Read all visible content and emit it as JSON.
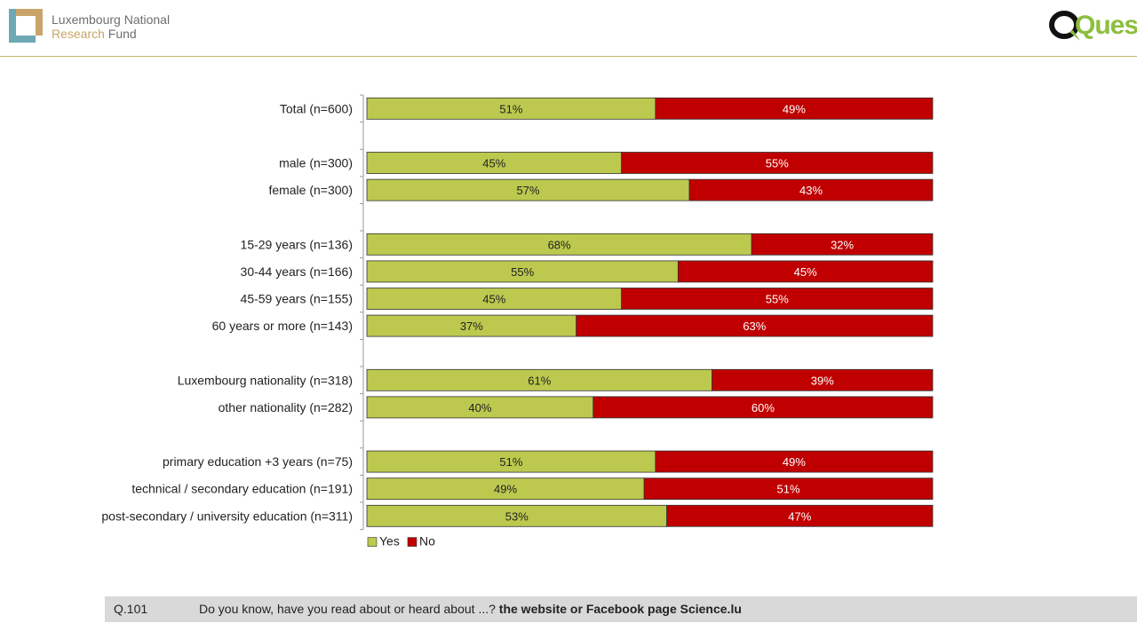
{
  "header": {
    "lnr_line1": "Luxembourg National",
    "lnr_line2_a": "Research",
    "lnr_line2_b": " Fund",
    "quest_logo": "Quest"
  },
  "colors": {
    "yes": "#bcc94e",
    "no": "#c00000",
    "accent_line": "#c8b46a"
  },
  "chart_data": {
    "type": "bar",
    "orientation": "horizontal",
    "stacked": "100%",
    "categories": [
      "Total (n=600)",
      "",
      "male (n=300)",
      "female (n=300)",
      "",
      "15-29 years (n=136)",
      "30-44 years (n=166)",
      "45-59 years (n=155)",
      "60 years or more (n=143)",
      "",
      "Luxembourg nationality (n=318)",
      "other nationality (n=282)",
      "",
      "primary education +3 years (n=75)",
      "technical / secondary education  (n=191)",
      "post-secondary / university education (n=311)"
    ],
    "series": [
      {
        "name": "Yes",
        "values": [
          51,
          null,
          45,
          57,
          null,
          68,
          55,
          45,
          37,
          null,
          61,
          40,
          null,
          51,
          49,
          53
        ]
      },
      {
        "name": "No",
        "values": [
          49,
          null,
          55,
          43,
          null,
          32,
          45,
          55,
          63,
          null,
          39,
          60,
          null,
          49,
          51,
          47
        ]
      }
    ],
    "value_suffix": "%",
    "xlim": [
      0,
      100
    ],
    "legend": "bottom-left"
  },
  "footer": {
    "question_id": "Q.101",
    "question_text": "Do you know, have you read about or heard about ...? ",
    "question_topic": "the website or Facebook page Science.lu"
  }
}
